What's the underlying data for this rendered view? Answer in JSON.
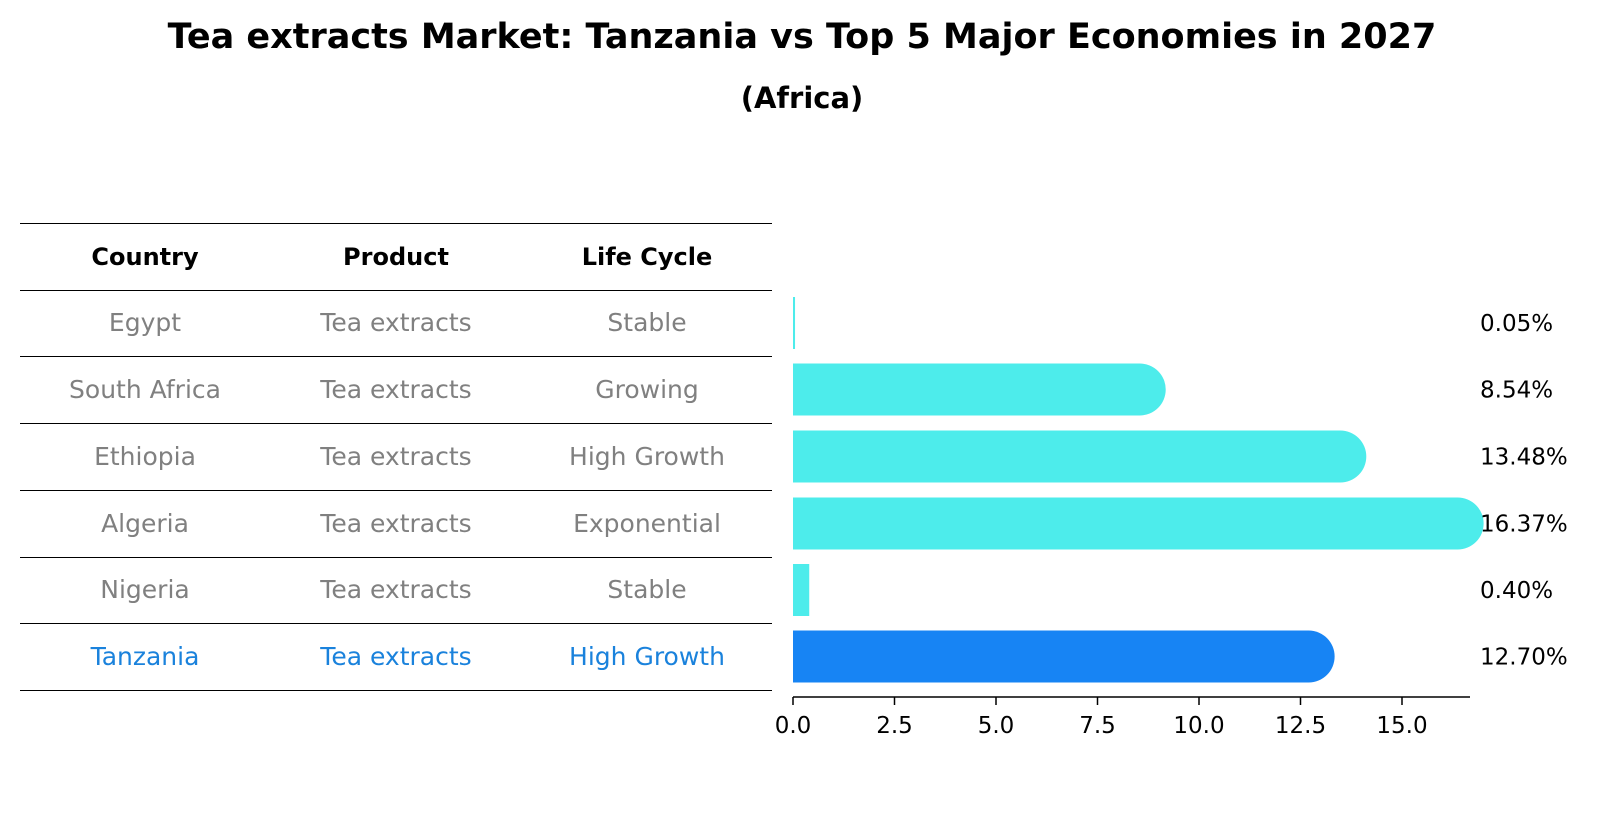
{
  "chart_data": {
    "type": "bar",
    "orientation": "horizontal",
    "title": "Tea extracts Market: Tanzania vs Top 5 Major Economies in 2027",
    "subtitle": "(Africa)",
    "table": {
      "headers": [
        "Country",
        "Product",
        "Life Cycle"
      ],
      "rows": [
        {
          "country": "Egypt",
          "product": "Tea extracts",
          "life_cycle": "Stable"
        },
        {
          "country": "South Africa",
          "product": "Tea extracts",
          "life_cycle": "Growing"
        },
        {
          "country": "Ethiopia",
          "product": "Tea extracts",
          "life_cycle": "High Growth"
        },
        {
          "country": "Algeria",
          "product": "Tea extracts",
          "life_cycle": "Exponential"
        },
        {
          "country": "Nigeria",
          "product": "Tea extracts",
          "life_cycle": "Stable"
        },
        {
          "country": "Tanzania",
          "product": "Tea extracts",
          "life_cycle": "High Growth",
          "highlight": true
        }
      ]
    },
    "categories": [
      "Egypt",
      "South Africa",
      "Ethiopia",
      "Algeria",
      "Nigeria",
      "Tanzania"
    ],
    "values": [
      0.05,
      8.54,
      13.48,
      16.37,
      0.4,
      12.7
    ],
    "value_labels": [
      "0.05%",
      "8.54%",
      "13.48%",
      "16.37%",
      "0.40%",
      "12.70%"
    ],
    "highlight_index": 5,
    "xlim": [
      0,
      17.2
    ],
    "xticks": [
      0.0,
      2.5,
      5.0,
      7.5,
      10.0,
      12.5,
      15.0
    ],
    "xtick_labels": [
      "0.0",
      "2.5",
      "5.0",
      "7.5",
      "10.0",
      "12.5",
      "15.0"
    ],
    "xlabel": "",
    "ylabel": "",
    "colors": {
      "bar": "#4deceb",
      "highlight_bar": "#1784f4",
      "highlight_text": "#1a82dc",
      "muted_text": "#808080"
    }
  }
}
